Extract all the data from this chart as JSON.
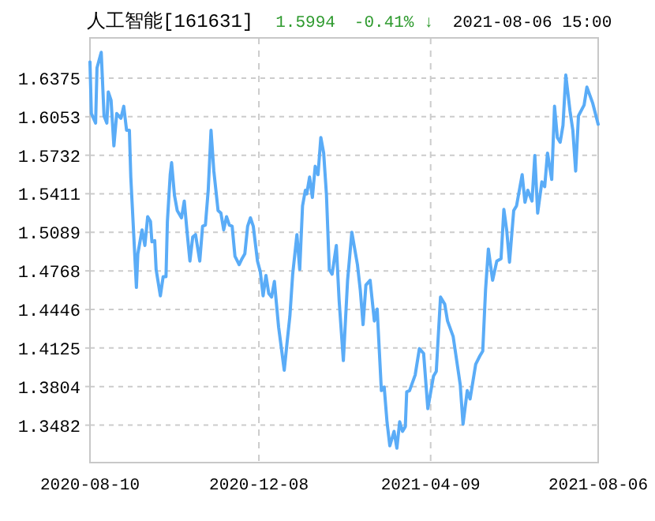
{
  "chart_data": {
    "type": "line",
    "title": "人工智能[161631]",
    "annotations": [
      "1.5994",
      "-0.41% ↓",
      "2021-08-06 15:00"
    ],
    "x": [
      "2020-08-10",
      "2020-08-11",
      "2020-08-14",
      "2020-08-15",
      "2020-08-18",
      "2020-08-20",
      "2020-08-22",
      "2020-08-23",
      "2020-08-25",
      "2020-08-27",
      "2020-08-29",
      "2020-09-01",
      "2020-09-03",
      "2020-09-05",
      "2020-09-07",
      "2020-09-08",
      "2020-09-12",
      "2020-09-13",
      "2020-09-16",
      "2020-09-18",
      "2020-09-20",
      "2020-09-22",
      "2020-09-23",
      "2020-09-25",
      "2020-09-26",
      "2020-09-29",
      "2020-10-01",
      "2020-10-03",
      "2020-10-04",
      "2020-10-06",
      "2020-10-07",
      "2020-10-09",
      "2020-10-11",
      "2020-10-14",
      "2020-10-16",
      "2020-10-18",
      "2020-10-20",
      "2020-10-22",
      "2020-10-24",
      "2020-10-27",
      "2020-10-29",
      "2020-10-31",
      "2020-11-02",
      "2020-11-04",
      "2020-11-06",
      "2020-11-09",
      "2020-11-11",
      "2020-11-13",
      "2020-11-15",
      "2020-11-17",
      "2020-11-19",
      "2020-11-21",
      "2020-11-24",
      "2020-11-26",
      "2020-11-28",
      "2020-11-30",
      "2020-12-02",
      "2020-12-04",
      "2020-12-07",
      "2020-12-09",
      "2020-12-11",
      "2020-12-13",
      "2020-12-15",
      "2020-12-17",
      "2020-12-19",
      "2020-12-22",
      "2020-12-24",
      "2020-12-26",
      "2020-12-28",
      "2020-12-30",
      "2021-01-01",
      "2021-01-04",
      "2021-01-06",
      "2021-01-08",
      "2021-01-10",
      "2021-01-11",
      "2021-01-13",
      "2021-01-15",
      "2021-01-17",
      "2021-01-19",
      "2021-01-21",
      "2021-01-23",
      "2021-01-25",
      "2021-01-27",
      "2021-01-29",
      "2021-02-01",
      "2021-02-03",
      "2021-02-06",
      "2021-02-09",
      "2021-02-12",
      "2021-02-16",
      "2021-02-18",
      "2021-02-20",
      "2021-02-22",
      "2021-02-25",
      "2021-02-28",
      "2021-03-02",
      "2021-03-05",
      "2021-03-07",
      "2021-03-09",
      "2021-03-11",
      "2021-03-14",
      "2021-03-16",
      "2021-03-18",
      "2021-03-20",
      "2021-03-22",
      "2021-03-23",
      "2021-03-25",
      "2021-03-29",
      "2021-04-01",
      "2021-04-04",
      "2021-04-07",
      "2021-04-11",
      "2021-04-13",
      "2021-04-16",
      "2021-04-19",
      "2021-04-21",
      "2021-04-25",
      "2021-04-30",
      "2021-05-02",
      "2021-05-05",
      "2021-05-07",
      "2021-05-11",
      "2021-05-14",
      "2021-05-16",
      "2021-05-18",
      "2021-05-20",
      "2021-05-23",
      "2021-05-26",
      "2021-05-29",
      "2021-05-31",
      "2021-06-02",
      "2021-06-04",
      "2021-06-07",
      "2021-06-09",
      "2021-06-11",
      "2021-06-13",
      "2021-06-15",
      "2021-06-17",
      "2021-06-20",
      "2021-06-22",
      "2021-06-24",
      "2021-06-27",
      "2021-06-29",
      "2021-07-01",
      "2021-07-04",
      "2021-07-06",
      "2021-07-08",
      "2021-07-10",
      "2021-07-12",
      "2021-07-14",
      "2021-07-17",
      "2021-07-19",
      "2021-07-21",
      "2021-07-23",
      "2021-07-27",
      "2021-07-29",
      "2021-08-02",
      "2021-08-06"
    ],
    "series": [
      {
        "color": "#5aacf7",
        "values": [
          1.651,
          1.608,
          1.6,
          1.646,
          1.659,
          1.606,
          1.6,
          1.626,
          1.619,
          1.581,
          1.608,
          1.604,
          1.614,
          1.594,
          1.594,
          1.555,
          1.463,
          1.491,
          1.511,
          1.498,
          1.522,
          1.518,
          1.501,
          1.502,
          1.478,
          1.456,
          1.472,
          1.472,
          1.518,
          1.557,
          1.567,
          1.54,
          1.527,
          1.521,
          1.535,
          1.509,
          1.485,
          1.505,
          1.507,
          1.485,
          1.514,
          1.515,
          1.544,
          1.594,
          1.56,
          1.527,
          1.525,
          1.511,
          1.522,
          1.515,
          1.514,
          1.489,
          1.482,
          1.487,
          1.491,
          1.514,
          1.521,
          1.514,
          1.485,
          1.476,
          1.456,
          1.473,
          1.458,
          1.455,
          1.468,
          1.43,
          1.412,
          1.394,
          1.417,
          1.439,
          1.474,
          1.507,
          1.478,
          1.531,
          1.544,
          1.541,
          1.555,
          1.538,
          1.564,
          1.557,
          1.588,
          1.575,
          1.54,
          1.478,
          1.474,
          1.498,
          1.452,
          1.402,
          1.469,
          1.509,
          1.482,
          1.461,
          1.432,
          1.465,
          1.469,
          1.435,
          1.445,
          1.377,
          1.38,
          1.351,
          1.331,
          1.343,
          1.329,
          1.351,
          1.343,
          1.347,
          1.376,
          1.377,
          1.39,
          1.412,
          1.408,
          1.362,
          1.389,
          1.393,
          1.455,
          1.449,
          1.435,
          1.422,
          1.382,
          1.349,
          1.377,
          1.37,
          1.399,
          1.406,
          1.41,
          1.461,
          1.495,
          1.469,
          1.485,
          1.487,
          1.528,
          1.511,
          1.484,
          1.527,
          1.531,
          1.544,
          1.557,
          1.534,
          1.544,
          1.535,
          1.573,
          1.525,
          1.551,
          1.547,
          1.575,
          1.553,
          1.614,
          1.588,
          1.584,
          1.598,
          1.64,
          1.61,
          1.594,
          1.56,
          1.606,
          1.615,
          1.63,
          1.617,
          1.599
        ]
      }
    ],
    "xlim": [
      "2020-08-10",
      "2021-08-06"
    ],
    "xticks": [
      "2020-08-10",
      "2020-12-08",
      "2021-04-09",
      "2021-08-06"
    ],
    "ylim": [
      1.317,
      1.671
    ],
    "yticks": [
      {
        "value": 1.3482,
        "label": "1.3482"
      },
      {
        "value": 1.3804,
        "label": "1.3804"
      },
      {
        "value": 1.4125,
        "label": "1.4125"
      },
      {
        "value": 1.4446,
        "label": "1.4446"
      },
      {
        "value": 1.4768,
        "label": "1.4768"
      },
      {
        "value": 1.5089,
        "label": "1.5089"
      },
      {
        "value": 1.5411,
        "label": "1.5411"
      },
      {
        "value": 1.5732,
        "label": "1.5732"
      },
      {
        "value": 1.6053,
        "label": "1.6053"
      },
      {
        "value": 1.6375,
        "label": "1.6375"
      }
    ],
    "grid": true
  }
}
